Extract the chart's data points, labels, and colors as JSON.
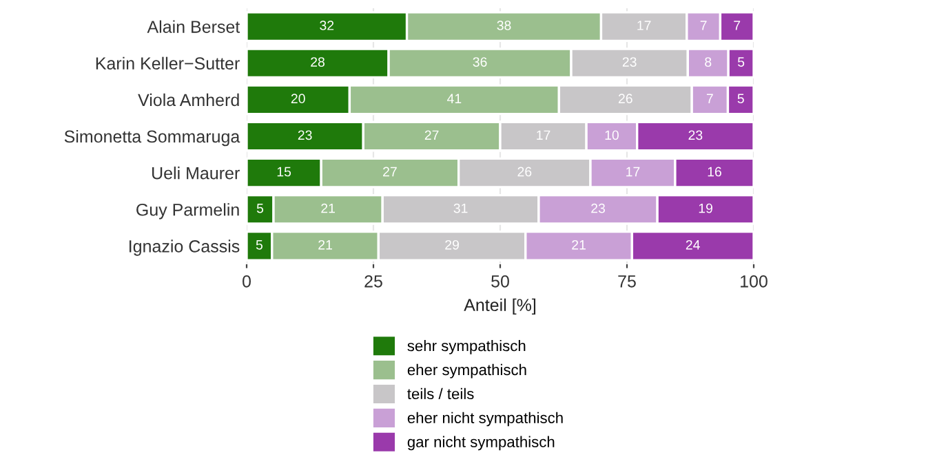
{
  "chart_data": {
    "type": "bar",
    "orientation": "horizontal",
    "stacked": true,
    "xlabel": "Anteil [%]",
    "categories": [
      "Alain Berset",
      "Karin Keller−Sutter",
      "Viola Amherd",
      "Simonetta Sommaruga",
      "Ueli Maurer",
      "Guy Parmelin",
      "Ignazio Cassis"
    ],
    "series": [
      {
        "name": "sehr sympathisch",
        "color": "#1f7a0b",
        "values": [
          31.6,
          28,
          20.3,
          23,
          14.7,
          5.3,
          5
        ],
        "value_labels": [
          "32",
          "28",
          "20",
          "23",
          "15",
          "5",
          "5"
        ]
      },
      {
        "name": "eher sympathisch",
        "color": "#9bbf8e",
        "values": [
          38.3,
          36,
          41.3,
          27,
          27.1,
          21.5,
          21
        ],
        "value_labels": [
          "38",
          "36",
          "41",
          "27",
          "27",
          "21",
          "21"
        ]
      },
      {
        "name": "teils / teils",
        "color": "#c8c6c8",
        "values": [
          16.9,
          23,
          26.2,
          17,
          26,
          30.8,
          29
        ],
        "value_labels": [
          "17",
          "23",
          "26",
          "17",
          "26",
          "31",
          "29"
        ]
      },
      {
        "name": "eher nicht sympathisch",
        "color": "#c9a0d6",
        "values": [
          6.6,
          8,
          7.1,
          10,
          16.7,
          23.4,
          21
        ],
        "value_labels": [
          "7",
          "8",
          "7",
          "10",
          "17",
          "23",
          "21"
        ]
      },
      {
        "name": "gar nicht sympathisch",
        "color": "#9a3aab",
        "values": [
          6.6,
          5,
          5.1,
          23,
          15.5,
          19,
          24
        ],
        "value_labels": [
          "7",
          "5",
          "5",
          "23",
          "16",
          "19",
          "24"
        ]
      }
    ],
    "xlim": [
      0,
      100
    ],
    "xticks": [
      0,
      25,
      50,
      75,
      100
    ],
    "grid": "x",
    "legend": "bottom"
  }
}
